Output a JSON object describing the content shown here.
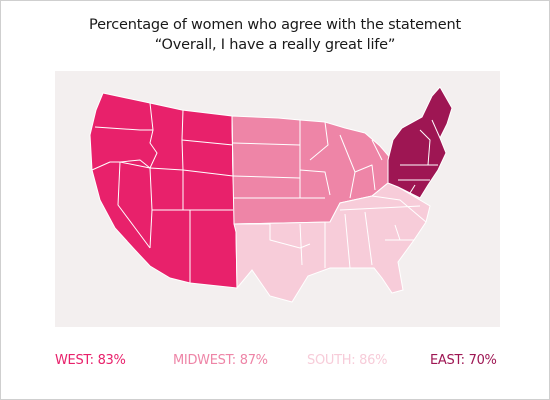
{
  "title_line1": "Percentage of women who agree with the statement",
  "title_line2": "“Overall, I have a really great life”",
  "colors": {
    "west": "#e8216b",
    "midwest": "#ee85a7",
    "south": "#f7ccd9",
    "east": "#9e1653",
    "background": "#f3efef",
    "border": "#ffffff"
  },
  "regions": [
    {
      "name": "WEST",
      "value": "83%",
      "color": "#e8216b"
    },
    {
      "name": "MIDWEST",
      "value": "87%",
      "color": "#ee85a7"
    },
    {
      "name": "SOUTH",
      "value": "86%",
      "color": "#f7ccd9"
    },
    {
      "name": "EAST",
      "value": "70%",
      "color": "#9e1653"
    }
  ]
}
